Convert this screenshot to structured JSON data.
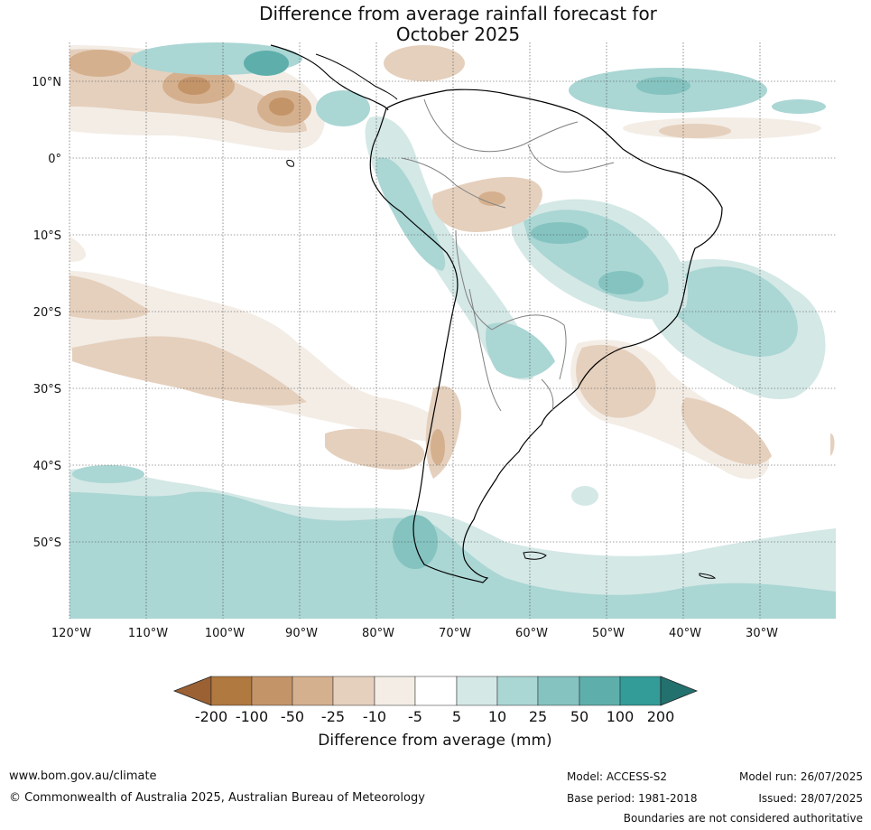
{
  "title": {
    "line1": "Difference from average rainfall forecast for",
    "line2": "October 2025"
  },
  "map": {
    "lat_labels": [
      "10°N",
      "0°",
      "10°S",
      "20°S",
      "30°S",
      "40°S",
      "50°S"
    ],
    "lon_labels": [
      "120°W",
      "110°W",
      "100°W",
      "90°W",
      "80°W",
      "70°W",
      "60°W",
      "50°W",
      "40°W",
      "30°W"
    ],
    "lat_range": [
      -60,
      15
    ],
    "lon_range": [
      -120,
      -20
    ],
    "gridlines": true
  },
  "legend": {
    "ticks": [
      "-200",
      "-100",
      "-50",
      "-25",
      "-10",
      "-5",
      "5",
      "10",
      "25",
      "50",
      "100",
      "200"
    ],
    "colors": [
      "#9b6133",
      "#b07940",
      "#c49469",
      "#d5b08e",
      "#e5d0bd",
      "#f3ede6",
      "#ffffff",
      "#d4e8e6",
      "#aad6d4",
      "#84c3c0",
      "#5eafac",
      "#339b98",
      "#23716f"
    ],
    "title": "Difference from average (mm)"
  },
  "footer": {
    "website": "www.bom.gov.au/climate",
    "copyright": "© Commonwealth of Australia 2025, Australian Bureau of Meteorology",
    "model": "Model: ACCESS-S2",
    "base_period": "Base period: 1981-2018",
    "model_run": "Model run: 26/07/2025",
    "issued": "Issued: 28/07/2025",
    "disclaimer": "Boundaries are not considered authoritative"
  }
}
